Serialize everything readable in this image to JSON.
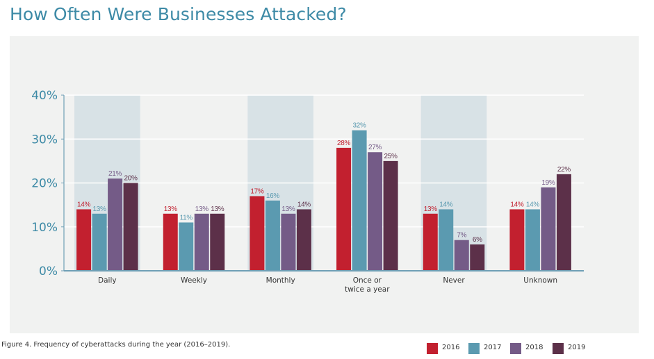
{
  "title": "How Often Were Businesses Attacked?",
  "caption": "Figure 4. Frequency of cyberattacks during the year (2016–2019).",
  "colors": {
    "2016": "#c2202f",
    "2017": "#5b9ab0",
    "2018": "#745b87",
    "2019": "#5c3049",
    "band": "#d8e2e6",
    "axis": "#6e9fb5",
    "label_axis": "#3d8aa6",
    "panel": "#f1f2f1"
  },
  "chart_data": {
    "type": "bar",
    "title": "How Often Were Businesses Attacked?",
    "xlabel": "",
    "ylabel": "",
    "ylim": [
      0,
      40
    ],
    "yticks": [
      0,
      10,
      20,
      30,
      40
    ],
    "ytick_labels": [
      "0%",
      "10%",
      "20%",
      "30%",
      "40%"
    ],
    "categories": [
      "Daily",
      "Weekly",
      "Monthly",
      "Once or\ntwice a year",
      "Never",
      "Unknown"
    ],
    "series": [
      {
        "name": "2016",
        "values": [
          14,
          13,
          17,
          28,
          13,
          14
        ],
        "labels": [
          "14%",
          "13%",
          "17%",
          "28%",
          "13%",
          "14%"
        ]
      },
      {
        "name": "2017",
        "values": [
          13,
          11,
          16,
          32,
          14,
          14
        ],
        "labels": [
          "13%",
          "11%",
          "16%",
          "32%",
          "14%",
          "14%"
        ]
      },
      {
        "name": "2018",
        "values": [
          21,
          13,
          13,
          27,
          7,
          19
        ],
        "labels": [
          "21%",
          "13%",
          "13%",
          "27%",
          "7%",
          "19%"
        ]
      },
      {
        "name": "2019",
        "values": [
          20,
          13,
          14,
          25,
          6,
          22
        ],
        "labels": [
          "20%",
          "13%",
          "14%",
          "25%",
          "6%",
          "22%"
        ]
      }
    ],
    "grid": true,
    "legend": "bottom-right"
  }
}
